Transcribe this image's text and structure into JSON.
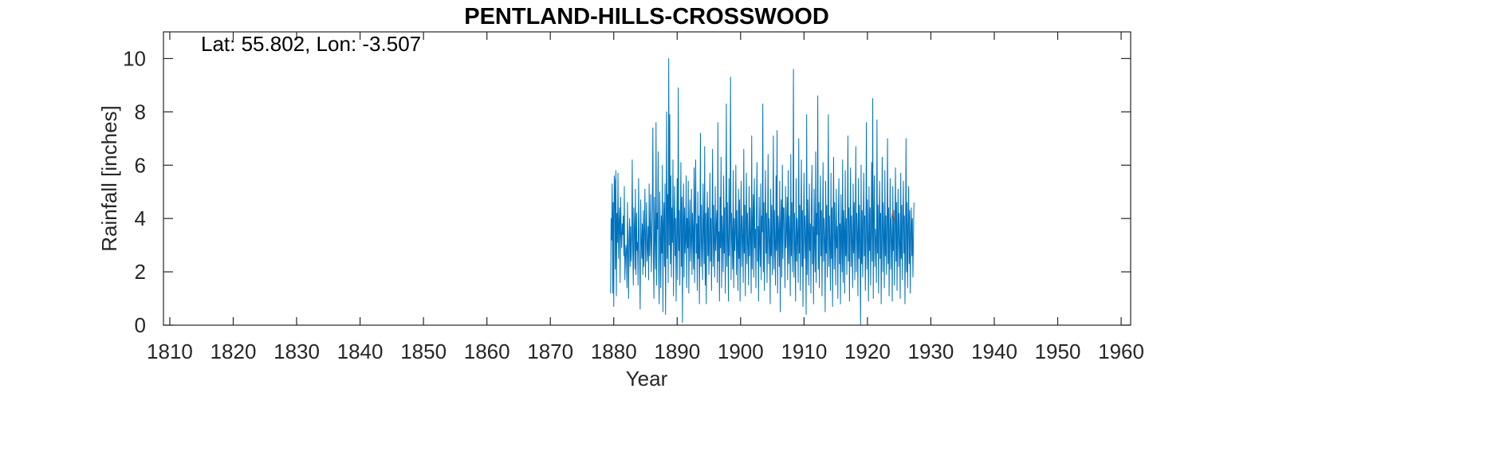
{
  "chart_data": {
    "type": "line",
    "title": "PENTLAND-HILLS-CROSSWOOD",
    "annotation": "Lat: 55.802, Lon: -3.507",
    "xlabel": "Year",
    "ylabel": "Rainfall [inches]",
    "xlim": [
      1809,
      1961.5
    ],
    "ylim": [
      0,
      11
    ],
    "xticks": [
      1810,
      1820,
      1830,
      1840,
      1850,
      1860,
      1870,
      1880,
      1890,
      1900,
      1910,
      1920,
      1930,
      1940,
      1950,
      1960
    ],
    "yticks": [
      0,
      2,
      4,
      6,
      8,
      10
    ],
    "grid": false,
    "series": [
      {
        "color": "#0072BD",
        "monthly_start_year": 1879.5,
        "values": [
          1.2,
          4.0,
          3.2,
          5.3,
          1.2,
          4.6,
          0.7,
          5.6,
          5.4,
          2.1,
          5.8,
          1.1,
          4.2,
          3.1,
          5.7,
          2.5,
          3.8,
          4.4,
          1.6,
          4.8,
          3.5,
          2.9,
          3.8,
          3.4,
          4.1,
          2.6,
          5.2,
          1.7,
          2.4,
          3.0,
          2.8,
          1.4,
          4.6,
          3.0,
          1.0,
          3.2,
          4.0,
          2.2,
          3.7,
          2.4,
          3.3,
          6.2,
          2.7,
          1.5,
          4.4,
          3.6,
          2.1,
          5.1,
          1.9,
          4.2,
          2.8,
          3.1,
          1.5,
          5.5,
          3.4,
          2.3,
          0.6,
          4.7,
          3.2,
          2.5,
          3.8,
          1.9,
          4.3,
          2.2,
          3.6,
          5.1,
          1.8,
          3.3,
          4.6,
          2.4,
          2.9,
          3.7,
          1.7,
          5.3,
          2.6,
          3.4,
          4.9,
          2.0,
          3.1,
          4.4,
          7.4,
          2.5,
          1.0,
          4.8,
          3.3,
          2.1,
          7.6,
          1.5,
          4.2,
          3.6,
          6.5,
          2.0,
          0.8,
          5.0,
          3.5,
          1.4,
          4.1,
          2.7,
          6.0,
          0.5,
          3.8,
          4.6,
          2.2,
          5.3,
          0.4,
          3.4,
          8.0,
          2.5,
          4.9,
          1.6,
          10.0,
          3.0,
          7.9,
          2.3,
          5.6,
          1.8,
          4.4,
          3.1,
          6.2,
          1.1,
          3.7,
          5.2,
          2.6,
          4.0,
          0.9,
          3.3,
          5.5,
          1.7,
          8.9,
          2.8,
          4.3,
          1.5,
          3.6,
          6.1,
          2.2,
          4.8,
          0.1,
          3.9,
          5.3,
          1.8,
          4.4,
          2.7,
          3.2,
          5.6,
          1.4,
          4.0,
          2.9,
          5.4,
          1.2,
          3.6,
          4.7,
          2.4,
          3.1,
          5.1,
          1.9,
          4.2,
          3.5,
          2.1,
          5.9,
          1.6,
          4.6,
          6.2,
          2.7,
          3.8,
          1.3,
          5.0,
          2.5,
          4.1,
          0.8,
          3.4,
          7.2,
          2.2,
          4.5,
          3.0,
          1.7,
          5.3,
          3.7,
          2.3,
          6.7,
          1.5,
          4.2,
          0.8,
          3.6,
          5.0,
          2.6,
          4.4,
          1.9,
          3.2,
          5.7,
          2.4,
          4.0,
          1.3,
          3.8,
          6.6,
          2.2,
          4.5,
          3.1,
          1.8,
          5.2,
          2.8,
          3.7,
          4.3,
          1.6,
          7.6,
          2.4,
          3.5,
          0.9,
          4.8,
          2.9,
          6.3,
          1.4,
          4.1,
          3.3,
          2.0,
          5.6,
          2.7,
          4.4,
          1.2,
          3.8,
          8.3,
          2.2,
          4.6,
          3.1,
          0.9,
          5.5,
          2.6,
          3.9,
          9.3,
          1.7,
          4.2,
          3.4,
          2.1,
          5.8,
          1.4,
          4.0,
          2.8,
          3.5,
          6.0,
          1.9,
          4.3,
          3.0,
          1.3,
          5.1,
          2.5,
          4.7,
          0.9,
          3.6,
          5.4,
          2.2,
          4.1,
          3.2,
          1.6,
          6.6,
          2.7,
          4.5,
          1.1,
          3.9,
          5.7,
          2.3,
          4.2,
          3.0,
          1.5,
          5.2,
          2.6,
          4.4,
          3.3,
          1.2,
          7.1,
          2.1,
          3.8,
          4.9,
          1.8,
          5.5,
          2.9,
          3.6,
          1.4,
          4.3,
          6.1,
          2.4,
          3.7,
          0.9,
          4.8,
          3.1,
          2.2,
          5.3,
          1.7,
          4.1,
          3.5,
          8.3,
          2.0,
          4.6,
          1.3,
          3.9,
          5.8,
          2.7,
          4.2,
          1.6,
          3.4,
          6.4,
          2.3,
          4.0,
          3.2,
          0.8,
          5.1,
          2.6,
          4.5,
          1.9,
          3.7,
          7.1,
          2.1,
          4.3,
          3.0,
          1.5,
          5.6,
          2.8,
          7.3,
          1.2,
          4.1,
          3.5,
          2.2,
          5.4,
          0.5,
          3.8,
          4.7,
          1.8,
          6.0,
          2.5,
          4.4,
          4.4,
          3.1,
          1.4,
          5.2,
          2.9,
          3.6,
          4.8,
          1.7,
          5.8,
          2.3,
          4.1,
          3.4,
          1.1,
          6.4,
          2.6,
          4.6,
          2.0,
          3.7,
          9.6,
          1.8,
          4.2,
          3.0,
          0.9,
          5.5,
          2.4,
          4.0,
          3.3,
          1.6,
          7.0,
          2.7,
          4.5,
          1.3,
          3.9,
          6.2,
          2.2,
          4.3,
          0.7,
          3.6,
          5.7,
          2.5,
          4.1,
          3.2,
          0.4,
          7.9,
          1.9,
          4.7,
          3.5,
          1.5,
          5.3,
          2.8,
          3.8,
          1.2,
          4.4,
          6.0,
          2.3,
          3.7,
          0.8,
          5.1,
          3.1,
          2.0,
          6.5,
          1.6,
          4.2,
          3.4,
          8.6,
          2.1,
          4.6,
          1.4,
          3.8,
          5.6,
          2.6,
          4.3,
          1.1,
          3.5,
          6.1,
          2.4,
          4.0,
          3.2,
          0.5,
          5.4,
          2.7,
          4.5,
          1.8,
          3.6,
          7.9,
          2.2,
          4.1,
          3.0,
          1.3,
          5.7,
          2.5,
          4.4,
          0.7,
          3.9,
          6.3,
          2.1,
          4.6,
          3.3,
          1.5,
          5.1,
          2.9,
          3.7,
          1.0,
          4.2,
          5.5,
          2.3,
          3.8,
          0.8,
          4.9,
          3.2,
          2.0,
          6.2,
          1.6,
          4.3,
          3.5,
          1.2,
          5.8,
          2.6,
          4.0,
          1.9,
          3.7,
          7.1,
          2.4,
          4.4,
          0.9,
          3.6,
          5.9,
          2.2,
          4.1,
          3.1,
          1.4,
          5.3,
          2.7,
          4.6,
          1.7,
          3.9,
          6.7,
          2.0,
          4.2,
          3.4,
          1.1,
          5.5,
          2.5,
          4.5,
          3.0,
          0.0,
          6.0,
          2.3,
          4.3,
          1.8,
          3.8,
          5.7,
          2.6,
          4.1,
          1.3,
          3.5,
          7.6,
          2.1,
          4.7,
          3.2,
          0.9,
          5.2,
          2.8,
          4.4,
          1.5,
          3.7,
          6.1,
          2.4,
          8.5,
          1.0,
          4.0,
          5.6,
          2.2,
          3.6,
          3.1,
          1.6,
          7.7,
          2.7,
          4.5,
          1.2,
          3.9,
          5.4,
          2.5,
          4.2,
          0.8,
          3.4,
          6.3,
          2.0,
          4.6,
          3.3,
          1.4,
          5.8,
          2.6,
          4.1,
          1.9,
          3.7,
          7.0,
          2.3,
          4.4,
          1.1,
          3.5,
          5.5,
          2.1,
          4.0,
          3.2,
          0.9,
          5.2,
          2.8,
          4.3,
          1.5,
          3.8,
          5.9,
          2.4,
          4.6,
          1.3,
          3.6,
          5.1,
          2.2,
          4.2,
          3.0,
          1.0,
          5.7,
          2.5,
          4.5,
          1.7,
          3.9,
          5.4,
          2.7,
          4.1,
          0.8,
          3.3,
          7.0,
          2.0,
          4.6,
          1.4,
          3.7,
          5.2,
          2.3,
          4.3,
          1.2,
          3.4,
          4.4,
          2.6,
          4.0,
          1.8,
          3.1,
          4.6
        ]
      },
      {
        "color": "#D95319",
        "points": [
          [
            1923.8,
            4.0
          ],
          [
            1924.0,
            4.3
          ],
          [
            1924.3,
            3.9
          ]
        ]
      }
    ]
  }
}
